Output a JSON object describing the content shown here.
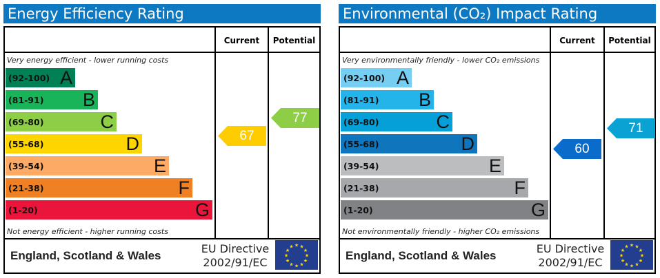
{
  "panels": [
    {
      "title": "Energy Efficiency Rating",
      "col_current": "Current",
      "col_potential": "Potential",
      "top_note": "Very energy efficient - lower running costs",
      "bottom_note": "Not energy efficient - higher running costs",
      "bands": [
        {
          "range": "(92-100)",
          "letter": "A",
          "color": "#008054"
        },
        {
          "range": "(81-91)",
          "letter": "B",
          "color": "#19b459"
        },
        {
          "range": "(69-80)",
          "letter": "C",
          "color": "#8dce46"
        },
        {
          "range": "(55-68)",
          "letter": "D",
          "color": "#ffd500"
        },
        {
          "range": "(39-54)",
          "letter": "E",
          "color": "#fcaa65"
        },
        {
          "range": "(21-38)",
          "letter": "F",
          "color": "#ef8023"
        },
        {
          "range": "(1-20)",
          "letter": "G",
          "color": "#e9153b"
        }
      ],
      "current": {
        "value": "67",
        "color": "#ffcc00"
      },
      "potential": {
        "value": "77",
        "color": "#8dce46"
      },
      "region": "England, Scotland & Wales",
      "directive_line1": "EU Directive",
      "directive_line2": "2002/91/EC"
    },
    {
      "title": "Environmental (CO₂) Impact Rating",
      "col_current": "Current",
      "col_potential": "Potential",
      "top_note": "Very environmentally friendly - lower CO₂ emissions",
      "bottom_note": "Not environmentally friendly - higher CO₂ emissions",
      "bands": [
        {
          "range": "(92-100)",
          "letter": "A",
          "color": "#76cff3"
        },
        {
          "range": "(81-91)",
          "letter": "B",
          "color": "#24b4e9"
        },
        {
          "range": "(69-80)",
          "letter": "C",
          "color": "#06a0d8"
        },
        {
          "range": "(55-68)",
          "letter": "D",
          "color": "#0f75bc"
        },
        {
          "range": "(39-54)",
          "letter": "E",
          "color": "#bcbdbf"
        },
        {
          "range": "(21-38)",
          "letter": "F",
          "color": "#a6a8ab"
        },
        {
          "range": "(1-20)",
          "letter": "G",
          "color": "#808285"
        }
      ],
      "current": {
        "value": "60",
        "color": "#0b6bcb"
      },
      "potential": {
        "value": "71",
        "color": "#0aa2d2"
      },
      "region": "England, Scotland & Wales",
      "directive_line1": "EU Directive",
      "directive_line2": "2002/91/EC"
    }
  ],
  "chart_data": [
    {
      "type": "bar",
      "title": "Energy Efficiency Rating",
      "categories": [
        "A",
        "B",
        "C",
        "D",
        "E",
        "F",
        "G"
      ],
      "current": 67,
      "potential": 77
    },
    {
      "type": "bar",
      "title": "Environmental (CO₂) Impact Rating",
      "categories": [
        "A",
        "B",
        "C",
        "D",
        "E",
        "F",
        "G"
      ],
      "current": 60,
      "potential": 71
    }
  ]
}
